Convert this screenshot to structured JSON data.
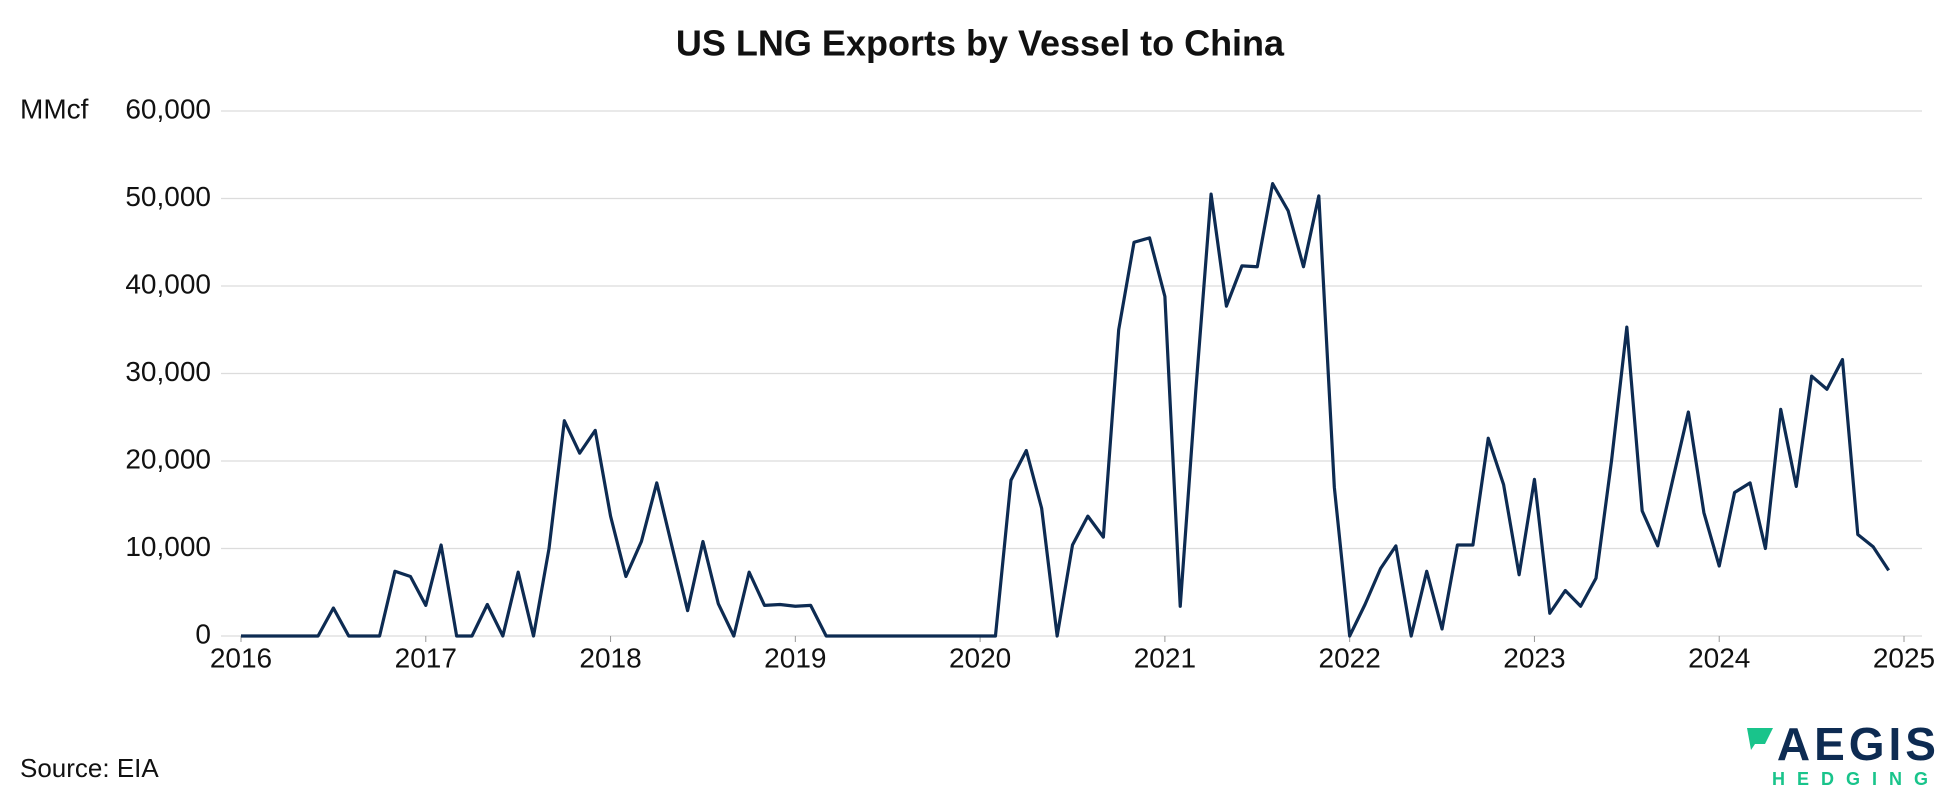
{
  "chart_data": {
    "type": "line",
    "title": "US LNG Exports by Vessel to China",
    "y_label": "MMcf",
    "source": "Source: EIA",
    "logo": {
      "name": "AEGIS",
      "tagline": "HEDGING"
    },
    "x": [
      2016,
      2016.083,
      2016.167,
      2016.25,
      2016.333,
      2016.417,
      2016.5,
      2016.583,
      2016.667,
      2016.75,
      2016.833,
      2016.917,
      2017,
      2017.083,
      2017.167,
      2017.25,
      2017.333,
      2017.417,
      2017.5,
      2017.583,
      2017.667,
      2017.75,
      2017.833,
      2017.917,
      2018,
      2018.083,
      2018.167,
      2018.25,
      2018.333,
      2018.417,
      2018.5,
      2018.583,
      2018.667,
      2018.75,
      2018.833,
      2018.917,
      2019,
      2019.083,
      2019.167,
      2019.25,
      2019.333,
      2019.417,
      2019.5,
      2019.583,
      2019.667,
      2019.75,
      2019.833,
      2019.917,
      2020,
      2020.083,
      2020.167,
      2020.25,
      2020.333,
      2020.417,
      2020.5,
      2020.583,
      2020.667,
      2020.75,
      2020.833,
      2020.917,
      2021,
      2021.083,
      2021.167,
      2021.25,
      2021.333,
      2021.417,
      2021.5,
      2021.583,
      2021.667,
      2021.75,
      2021.833,
      2021.917,
      2022,
      2022.083,
      2022.167,
      2022.25,
      2022.333,
      2022.417,
      2022.5,
      2022.583,
      2022.667,
      2022.75,
      2022.833,
      2022.917,
      2023,
      2023.083,
      2023.167,
      2023.25,
      2023.333,
      2023.417,
      2023.5,
      2023.583,
      2023.667,
      2023.75,
      2023.833,
      2023.917,
      2024,
      2024.083,
      2024.167,
      2024.25,
      2024.333,
      2024.417,
      2024.5,
      2024.583,
      2024.667,
      2024.75,
      2024.833,
      2024.917
    ],
    "series": [
      {
        "name": "US LNG Exports by Vessel to China",
        "color": "#0d2b52",
        "values": [
          0,
          0,
          0,
          0,
          0,
          0,
          3200,
          0,
          0,
          0,
          7400,
          6800,
          3500,
          10400,
          0,
          0,
          3600,
          0,
          7300,
          0,
          10000,
          24600,
          20900,
          23500,
          13700,
          6800,
          10800,
          17500,
          10200,
          2900,
          10800,
          3700,
          0,
          7300,
          3500,
          3600,
          3400,
          3500,
          0,
          0,
          0,
          0,
          0,
          0,
          0,
          0,
          0,
          0,
          0,
          0,
          17800,
          21200,
          14600,
          0,
          10400,
          13700,
          11300,
          35000,
          45000,
          45500,
          38800,
          3400,
          28000,
          50500,
          37700,
          42300,
          42200,
          51700,
          48600,
          42200,
          50300,
          17000,
          0,
          3600,
          7700,
          10300,
          0,
          7400,
          800,
          10400,
          10400,
          22600,
          17300,
          7000,
          17900,
          2600,
          5200,
          3400,
          6600,
          20000,
          35300,
          14300,
          10300,
          18000,
          25600,
          14100,
          8000,
          16400,
          17500,
          10000,
          25900,
          17100,
          29700,
          28200,
          31600,
          11600,
          10200,
          7500
        ]
      }
    ],
    "xlim": [
      2016,
      2025
    ],
    "xticks": [
      2016,
      2017,
      2018,
      2019,
      2020,
      2021,
      2022,
      2023,
      2024,
      2025
    ],
    "ylim": [
      0,
      60000
    ],
    "yticks": [
      0,
      {
        "value": 10000,
        "label": "10,000"
      },
      {
        "value": 20000,
        "label": "20,000"
      },
      {
        "value": 30000,
        "label": "30,000"
      },
      {
        "value": 40000,
        "label": "40,000"
      },
      {
        "value": 50000,
        "label": "50,000"
      },
      {
        "value": 60000,
        "label": "60,000"
      }
    ],
    "grid": true
  }
}
